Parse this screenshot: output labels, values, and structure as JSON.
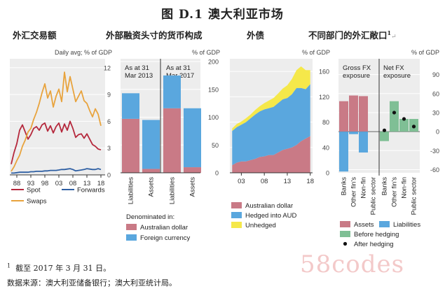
{
  "figure_title": "图 D.1  澳大利亚市场",
  "subtitles": [
    "外汇交易额",
    "外部融资头寸的货币构成",
    "外债",
    "不同部门的外汇敞口"
  ],
  "subtitle_mark": "↵",
  "superscript": "1",
  "footnote": "截至 2017 年 3 月 31 日。",
  "source": "数据来源：澳大利亚储备银行；澳大利亚统计局。",
  "watermark": "58codes",
  "colors": {
    "red": "#b5283c",
    "orange": "#e8a33d",
    "blue": "#2e5fa3",
    "pink": "#c97a86",
    "lightblue": "#5aa7de",
    "yellow": "#f5e84a",
    "green": "#7fbf95",
    "black": "#111111"
  },
  "chart_data": [
    {
      "type": "line",
      "unit_label": "Daily avg; % of GDP",
      "x": [
        1986,
        1987,
        1988,
        1989,
        1990,
        1991,
        1992,
        1993,
        1994,
        1995,
        1996,
        1997,
        1998,
        1999,
        2000,
        2001,
        2002,
        2003,
        2004,
        2005,
        2006,
        2007,
        2008,
        2009,
        2010,
        2011,
        2012,
        2013,
        2014,
        2015,
        2016,
        2017,
        2018
      ],
      "x_ticks": [
        1988,
        1993,
        1998,
        2003,
        2008,
        2013,
        2018
      ],
      "x_tick_labels": [
        "88",
        "93",
        "98",
        "03",
        "08",
        "13",
        "18"
      ],
      "xlim": [
        1986,
        2019
      ],
      "ylim": [
        0,
        13
      ],
      "y_ticks": [
        0,
        3,
        6,
        9,
        12
      ],
      "grid": true,
      "series": [
        {
          "name": "Spot",
          "color_key": "red",
          "values": [
            1.2,
            2.5,
            3.5,
            5.0,
            5.6,
            4.8,
            4.0,
            4.5,
            5.2,
            5.4,
            5.0,
            5.6,
            5.8,
            4.9,
            5.5,
            4.7,
            5.4,
            5.8,
            4.8,
            5.7,
            5.0,
            6.0,
            5.2,
            4.2,
            4.5,
            4.6,
            4.1,
            4.6,
            4.0,
            3.4,
            3.2,
            2.9,
            2.8
          ]
        },
        {
          "name": "Swaps",
          "color_key": "orange",
          "values": [
            0.4,
            0.9,
            1.6,
            2.2,
            3.2,
            3.9,
            4.8,
            5.2,
            6.2,
            7.0,
            8.0,
            9.2,
            10.2,
            8.6,
            9.4,
            7.6,
            8.8,
            9.6,
            8.2,
            11.5,
            9.3,
            11.0,
            9.6,
            8.2,
            8.8,
            9.4,
            8.3,
            8.0,
            7.2,
            6.5,
            7.4,
            6.8,
            5.5
          ]
        },
        {
          "name": "Forwards",
          "color_key": "blue",
          "values": [
            0.2,
            0.2,
            0.25,
            0.3,
            0.3,
            0.3,
            0.3,
            0.35,
            0.35,
            0.4,
            0.4,
            0.4,
            0.45,
            0.45,
            0.5,
            0.5,
            0.5,
            0.55,
            0.6,
            0.6,
            0.65,
            0.7,
            0.6,
            0.45,
            0.5,
            0.55,
            0.6,
            0.7,
            0.65,
            0.6,
            0.6,
            0.7,
            0.6
          ]
        }
      ],
      "legend": [
        "Spot",
        "Swaps",
        "Forwards"
      ]
    },
    {
      "type": "bar",
      "unit_label": "% of GDP",
      "groups": [
        {
          "label": "As at 31 Mar 2013",
          "label_lines": [
            "As at 31",
            "Mar 2013"
          ],
          "categories": [
            "Liabilities",
            "Assets"
          ],
          "australian_dollar": [
            97,
            7
          ],
          "foreign_currency": [
            46,
            88
          ]
        },
        {
          "label": "As at 31 Mar 2017",
          "label_lines": [
            "As at 31",
            "Mar 2017"
          ],
          "categories": [
            "Liabilities",
            "Assets"
          ],
          "australian_dollar": [
            116,
            10
          ],
          "foreign_currency": [
            59,
            106
          ]
        }
      ],
      "ylim": [
        0,
        200
      ],
      "y_ticks": [
        0,
        50,
        100,
        150,
        200
      ],
      "legend_title": "Denominated in:",
      "series": [
        {
          "name": "Australian dollar",
          "color_key": "pink"
        },
        {
          "name": "Foreign currency",
          "color_key": "lightblue"
        }
      ]
    },
    {
      "type": "area",
      "unit_label": "% of GDP",
      "x": [
        2001,
        2002,
        2003,
        2004,
        2005,
        2006,
        2007,
        2008,
        2009,
        2010,
        2011,
        2012,
        2013,
        2014,
        2015,
        2016,
        2017,
        2018
      ],
      "x_ticks": [
        2003,
        2008,
        2013,
        2018
      ],
      "x_tick_labels": [
        "03",
        "08",
        "13",
        "18"
      ],
      "xlim": [
        2000.5,
        2018.5
      ],
      "ylim": [
        0,
        180
      ],
      "y_ticks": [
        0,
        40,
        80,
        120,
        160
      ],
      "series": [
        {
          "name": "Australian dollar",
          "color_key": "pink",
          "values": [
            12,
            16,
            18,
            18,
            20,
            22,
            25,
            26,
            28,
            28,
            32,
            36,
            38,
            40,
            44,
            50,
            54,
            58
          ]
        },
        {
          "name": "Hedged into AUD",
          "color_key": "lightblue",
          "values": [
            54,
            56,
            58,
            62,
            66,
            70,
            72,
            74,
            74,
            76,
            78,
            80,
            80,
            84,
            90,
            84,
            78,
            82
          ]
        },
        {
          "name": "Unhedged",
          "color_key": "yellow",
          "values": [
            4,
            5,
            5,
            6,
            6,
            7,
            8,
            10,
            12,
            14,
            15,
            17,
            20,
            24,
            28,
            34,
            30,
            22
          ]
        }
      ]
    },
    {
      "type": "bar",
      "unit_label": "% of GDP",
      "panels": [
        {
          "title": "Gross FX exposure",
          "title_lines": [
            "Gross FX",
            "exposure"
          ],
          "sectors": [
            "Banks",
            "Other fin's",
            "Non-fin",
            "Public sector"
          ],
          "assets": [
            48,
            57,
            56,
            0
          ],
          "liabilities": [
            -63,
            -4,
            -33,
            0
          ]
        },
        {
          "title": "Net FX exposure",
          "title_lines": [
            "Net FX",
            "exposure"
          ],
          "sectors": [
            "Banks",
            "Other fin's",
            "Non-fin",
            "Public sector"
          ],
          "before_hedging": [
            -15,
            48,
            20,
            20
          ],
          "after_hedging": [
            2,
            30,
            20,
            8
          ]
        }
      ],
      "ylim": [
        -65,
        115
      ],
      "y_ticks": [
        -60,
        -30,
        0,
        30,
        60,
        90
      ],
      "series": [
        {
          "name": "Assets",
          "color_key": "pink"
        },
        {
          "name": "Liabilities",
          "color_key": "lightblue"
        },
        {
          "name": "Before hedging",
          "color_key": "green"
        },
        {
          "name": "After hedging",
          "color_key": "black"
        }
      ]
    }
  ]
}
